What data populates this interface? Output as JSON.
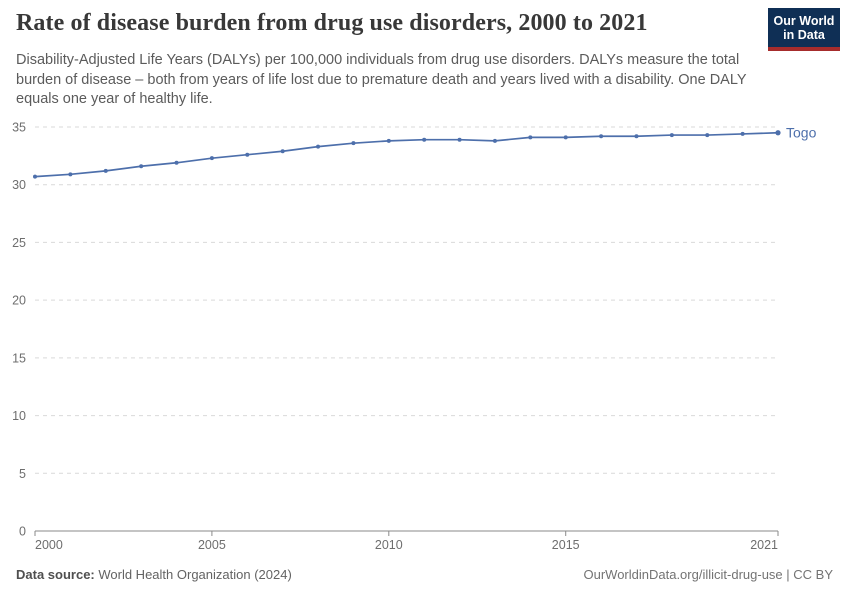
{
  "header": {
    "title": "Rate of disease burden from drug use disorders, 2000 to 2021",
    "subtitle": "Disability-Adjusted Life Years (DALYs) per 100,000 individuals from drug use disorders. DALYs measure the total burden of disease – both from years of life lost due to premature death and years lived with a disability. One DALY equals one year of healthy life.",
    "logo": {
      "line1": "Our World",
      "line2": "in Data",
      "bg_color": "#0f2f55",
      "accent_color": "#a62c2c"
    }
  },
  "chart_data": {
    "type": "line",
    "title": "Rate of disease burden from drug use disorders, 2000 to 2021",
    "xlabel": "",
    "ylabel": "",
    "x": [
      2000,
      2001,
      2002,
      2003,
      2004,
      2005,
      2006,
      2007,
      2008,
      2009,
      2010,
      2011,
      2012,
      2013,
      2014,
      2015,
      2016,
      2017,
      2018,
      2019,
      2020,
      2021
    ],
    "series": [
      {
        "name": "Togo",
        "color": "#4d6fab",
        "values": [
          30.7,
          30.9,
          31.2,
          31.6,
          31.9,
          32.3,
          32.6,
          32.9,
          33.3,
          33.6,
          33.8,
          33.9,
          33.9,
          33.8,
          34.1,
          34.1,
          34.2,
          34.2,
          34.3,
          34.3,
          34.4,
          34.5
        ]
      }
    ],
    "ylim": [
      0,
      35
    ],
    "yticks": [
      0,
      5,
      10,
      15,
      20,
      25,
      30,
      35
    ],
    "xticks": [
      2000,
      2005,
      2010,
      2015,
      2021
    ],
    "grid": "horizontal-dashed",
    "legend": "end-of-line-label",
    "colors": {
      "gridline": "#d9d9d9",
      "axis": "#8a8a8a",
      "tick_text": "#6e6e6e"
    }
  },
  "footer": {
    "source_label": "Data source:",
    "source_value": " World Health Organization (2024)",
    "credit_link": "OurWorldinData.org/illicit-drug-use",
    "credit_suffix": " | CC BY"
  }
}
